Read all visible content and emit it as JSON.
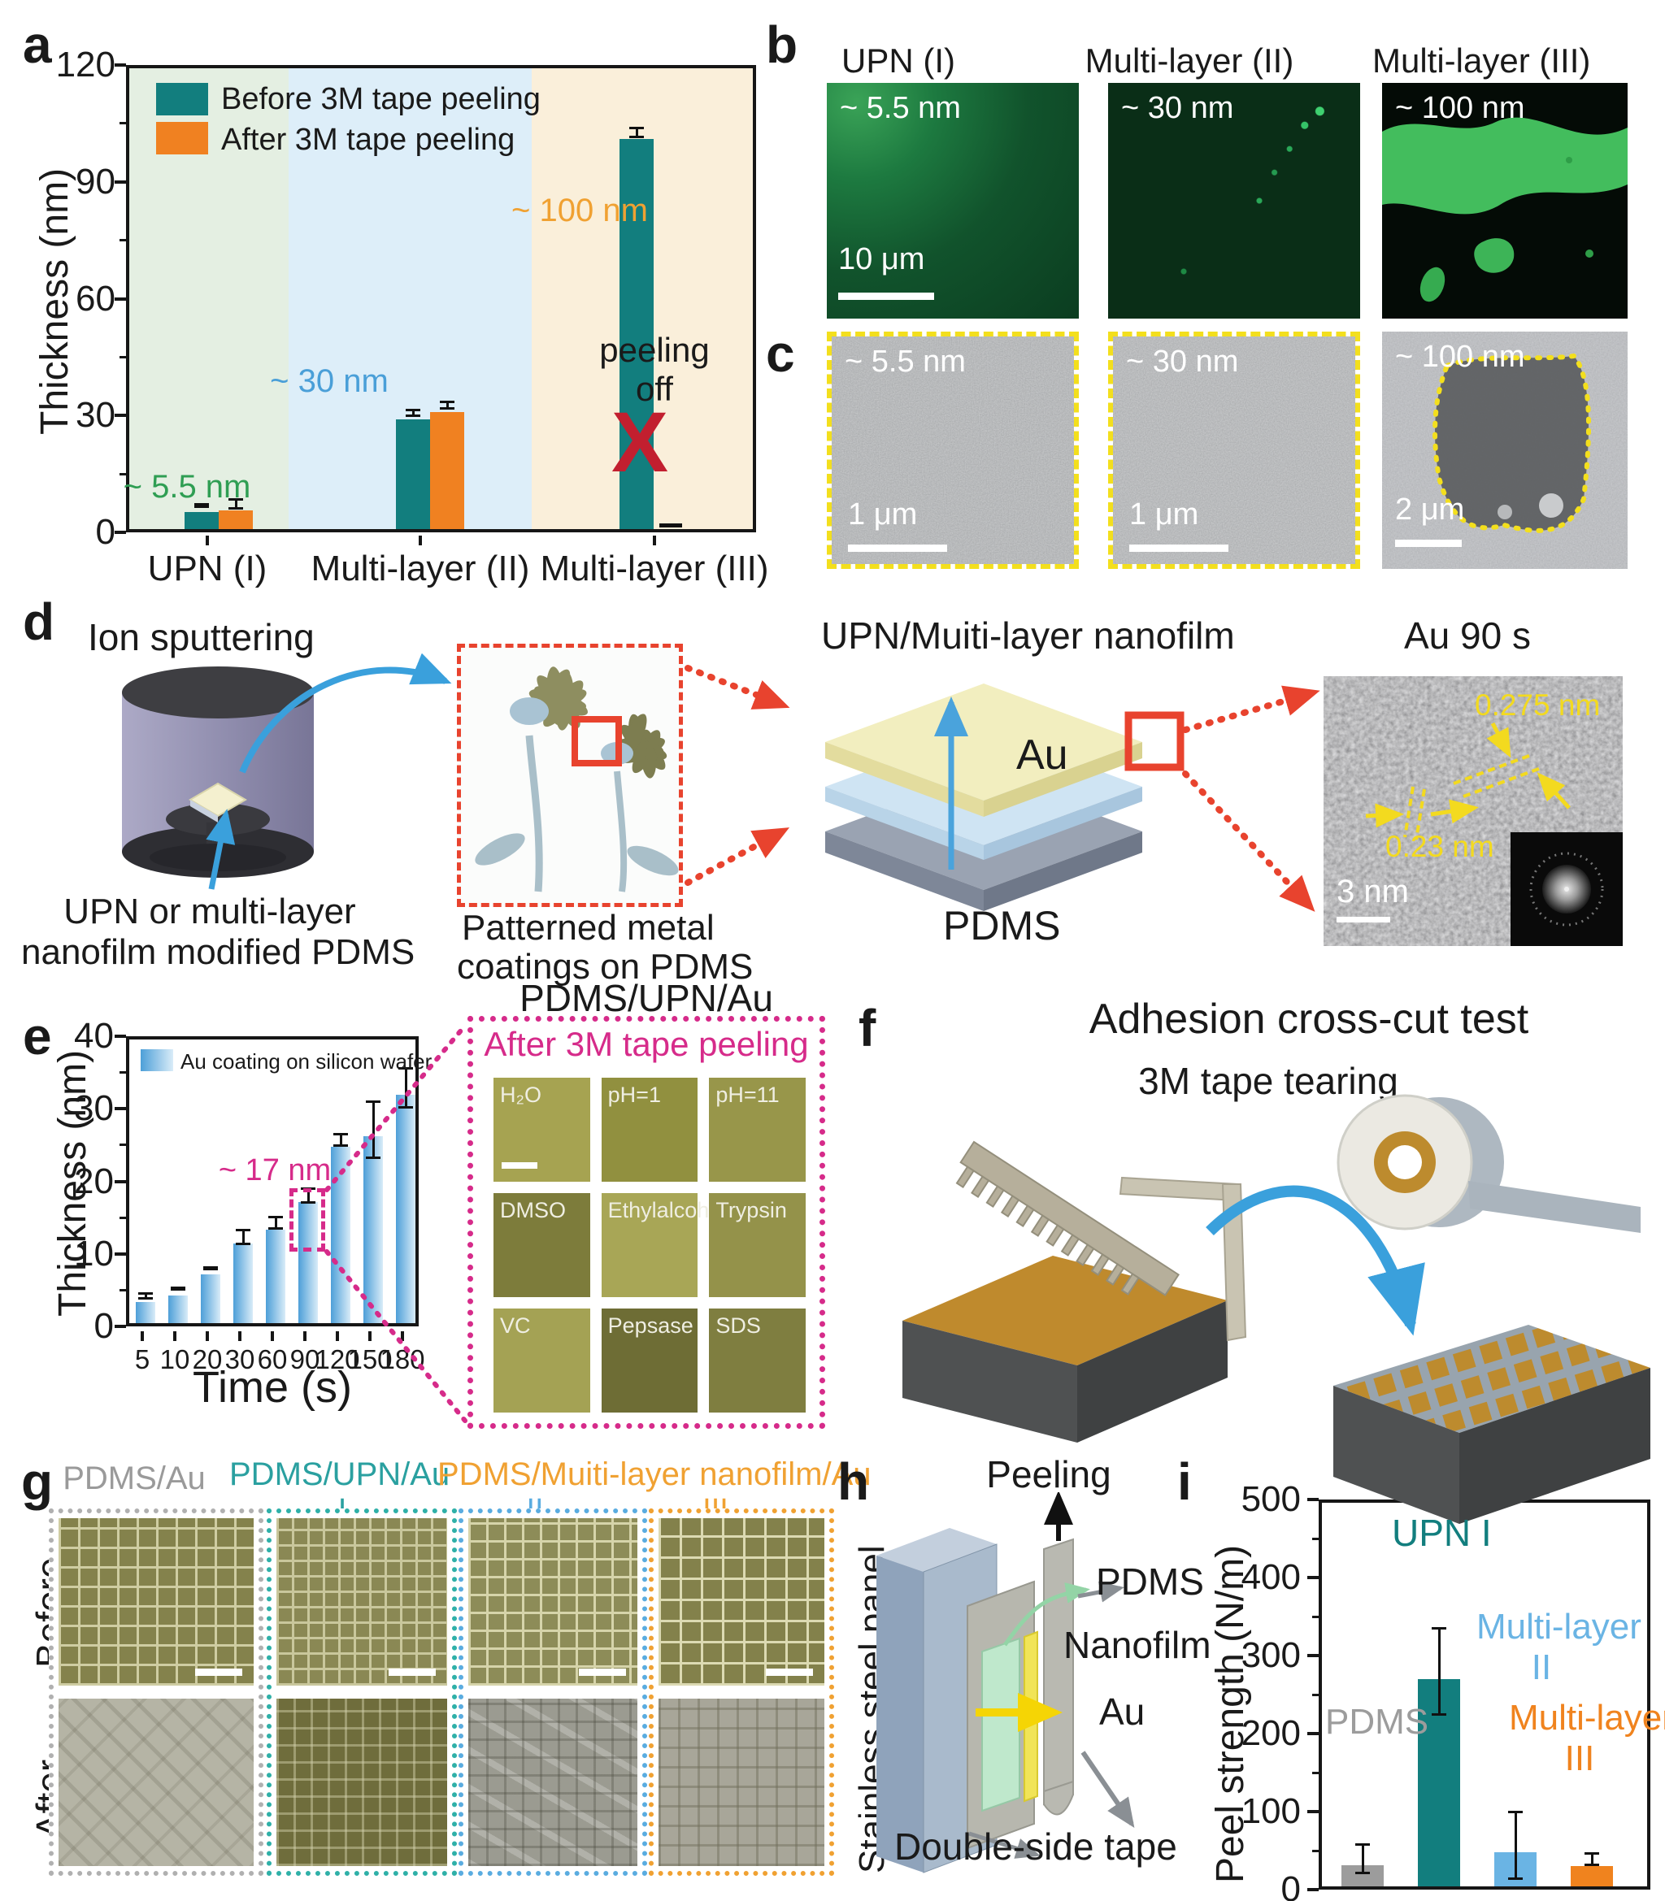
{
  "colors": {
    "teal": "#127e7e",
    "orange": "#f08121",
    "light_blue": "#5aace0",
    "gray": "#9a9a9a",
    "green_text": "#2f9e53",
    "blue_text": "#4a9fd8",
    "orange_text": "#f0a132",
    "magenta": "#d62b8a",
    "red": "#e8432e",
    "x_red": "#c21f2f",
    "yellow": "#f3da1f"
  },
  "chart_data": [
    {
      "id": "thickness_vs_sample",
      "type": "bar",
      "ylabel": "Thickness (nm)",
      "ylim": [
        0,
        120
      ],
      "y_ticks": [
        "0",
        "30",
        "60",
        "90",
        "120"
      ],
      "categories": [
        "UPN (I)",
        "Multi-layer (II)",
        "Multi-layer (III)"
      ],
      "band_colors": [
        "#e4efe2",
        "#ddeef9",
        "#faefda"
      ],
      "series": [
        {
          "name": "Before 3M tape peeling",
          "color": "#127e7e",
          "values": [
            4.5,
            29,
            103
          ],
          "err_low": [
            0.7,
            1.0,
            1.5
          ],
          "err_high": [
            0.7,
            1.0,
            1.5
          ]
        },
        {
          "name": "After 3M tape peeling",
          "color": "#f08121",
          "values": [
            5,
            31,
            0
          ],
          "err_low": [
            1.5,
            1.2,
            0
          ],
          "err_high": [
            1.5,
            1.2,
            0
          ]
        }
      ],
      "annotations": {
        "upn": "~ 5.5 nm",
        "ii": "~ 30 nm",
        "iii": "~ 100 nm",
        "peel1": "peeling",
        "peel2": "off",
        "x_mark": "X"
      }
    },
    {
      "id": "au_coating_time",
      "type": "bar",
      "ylabel": "Thickness (nm)",
      "xlabel": "Time (s)",
      "ylim": [
        0,
        40
      ],
      "y_ticks": [
        "0",
        "10",
        "20",
        "30",
        "40"
      ],
      "categories": [
        "5",
        "10",
        "20",
        "30",
        "60",
        "90",
        "120",
        "150",
        "180"
      ],
      "series": [
        {
          "name": "Au coating on silicon wafer",
          "gradient": [
            "#4d9fd8",
            "#d9ecf8"
          ],
          "values": [
            3,
            4,
            7,
            11.5,
            13.5,
            17.5,
            25.5,
            27,
            33
          ],
          "err_low": [
            0.5,
            0.3,
            0.3,
            1.2,
            1.0,
            1.2,
            1.0,
            4.2,
            3.0
          ],
          "err_high": [
            0.5,
            0.3,
            0.3,
            1.2,
            1.0,
            1.2,
            1.0,
            4.2,
            3.0
          ]
        }
      ],
      "annotations": {
        "nm17": "~ 17 nm"
      }
    },
    {
      "id": "peel_strength",
      "type": "bar",
      "ylabel": "Peel strength (N/m)",
      "ylim": [
        0,
        500
      ],
      "y_ticks": [
        "0",
        "100",
        "200",
        "300",
        "400",
        "500"
      ],
      "categories": [
        "PDMS",
        "UPN I",
        "Multi-layer II",
        "Multi-layer III"
      ],
      "series": [
        {
          "name": "Peel strength",
          "colors": [
            "#9c9c9c",
            "#127e7e",
            "#6ab4e4",
            "#f0831e"
          ],
          "values": [
            28,
            275,
            45,
            27
          ],
          "err_low": [
            20,
            57,
            45,
            9
          ],
          "err_high": [
            20,
            60,
            47,
            10
          ]
        }
      ]
    }
  ],
  "panel_a": {
    "label": "a",
    "y_axis_label": "Thickness (nm)"
  },
  "panel_b": {
    "label": "b",
    "titles": [
      "UPN (I)",
      "Multi-layer (II)",
      "Multi-layer (III)"
    ],
    "img_labels": [
      "~ 5.5 nm",
      "~ 30 nm",
      "~ 100 nm"
    ],
    "scale_bar": "10 μm"
  },
  "panel_c": {
    "label": "c",
    "img_labels": [
      "~ 5.5 nm",
      "~ 30 nm",
      "~ 100 nm"
    ],
    "scale_bars": [
      "1 μm",
      "1 μm",
      "2 μm"
    ]
  },
  "panel_d": {
    "label": "d",
    "ion_sputtering": "Ion sputtering",
    "cylinder_caption_1": "UPN or multi-layer",
    "cylinder_caption_2": "nanofilm modified PDMS",
    "flower_caption_1": "Patterned metal",
    "flower_caption_2": "coatings on PDMS",
    "stack_title": "UPN/Muiti-layer nanofilm",
    "au_label": "Au",
    "pdms_label": "PDMS",
    "tem_title": "Au 90 s",
    "d_spacing_1": "0.275 nm",
    "d_spacing_2": "0.23 nm",
    "tem_scale": "3 nm"
  },
  "panel_e": {
    "label": "e",
    "y_axis_label": "Thickness (nm)",
    "x_axis_label": "Time (s)",
    "inset": {
      "title": "PDMS/UPN/Au",
      "subtitle": "After 3M tape peeling",
      "cells": [
        {
          "label": "H₂O",
          "color": "#a6a351",
          "scalebar": true
        },
        {
          "label": "pH=1",
          "color": "#91903f"
        },
        {
          "label": "pH=11",
          "color": "#98964a"
        },
        {
          "label": "DMSO",
          "color": "#7d7c3b"
        },
        {
          "label": "Ethylalcohol",
          "color": "#a8a656"
        },
        {
          "label": "Trypsin",
          "color": "#94924a"
        },
        {
          "label": "VC",
          "color": "#a4a254"
        },
        {
          "label": "Pepsase",
          "color": "#6e6d35"
        },
        {
          "label": "SDS",
          "color": "#7f7e40"
        }
      ]
    }
  },
  "panel_f": {
    "label": "f",
    "title": "Adhesion cross-cut test",
    "subtitle": "3M tape tearing"
  },
  "panel_g": {
    "label": "g",
    "headers": [
      {
        "label": "PDMS/Au",
        "color": "#9a9a9a"
      },
      {
        "label": "PDMS/UPN/Au",
        "color": "#2aa0a0"
      },
      {
        "label": "PDMS/Muiti-layer nanofilm/Au",
        "color": "#f0a132"
      }
    ],
    "roman": [
      {
        "label": "I",
        "color": "#2aa0a0"
      },
      {
        "label": "II",
        "color": "#5aace0"
      },
      {
        "label": "III",
        "color": "#f0a132"
      }
    ],
    "row_labels": [
      "Before",
      "After"
    ]
  },
  "panel_h": {
    "label": "h",
    "peeling": "Peeling",
    "pdms": "PDMS",
    "nanofilm": "Nanofilm",
    "au": "Au",
    "panel_label": "Stainless steel panel",
    "tape": "Double-side tape"
  },
  "panel_i": {
    "label": "i",
    "y_axis_label": "Peel strength (N/m)",
    "bar_labels": [
      {
        "l1": "PDMS",
        "l2": ""
      },
      {
        "l1": "UPN I",
        "l2": ""
      },
      {
        "l1": "Multi-layer",
        "l2": "II"
      },
      {
        "l1": "Multi-layer",
        "l2": "III"
      }
    ]
  }
}
